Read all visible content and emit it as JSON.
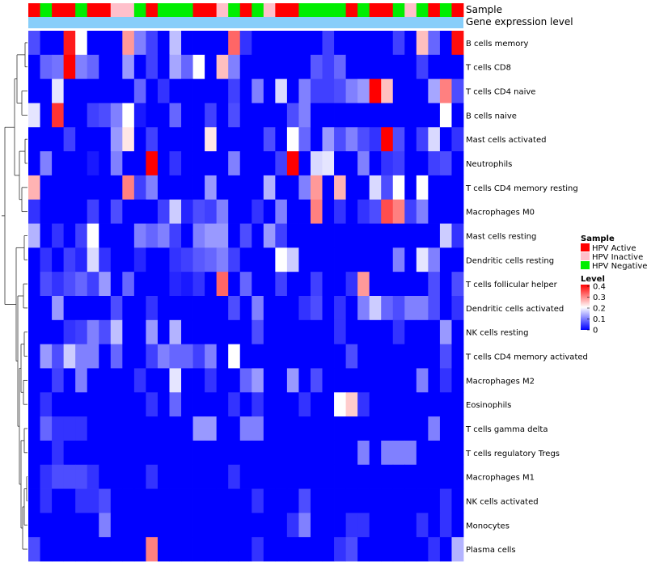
{
  "chart_data": {
    "type": "heatmap",
    "title": "",
    "annotation_tracks": [
      "Sample",
      "Gene expression level"
    ],
    "rows": [
      "B cells memory",
      "T cells CD8",
      "T cells CD4 naive",
      "B cells naive",
      "Mast cells activated",
      "Neutrophils",
      "T cells CD4 memory resting",
      "Macrophages M0",
      "Mast cells resting",
      "Dendritic cells resting",
      "T cells follicular helper",
      "Dendritic cells activated",
      "NK cells resting",
      "T cells CD4 memory activated",
      "Macrophages M2",
      "Eosinophils",
      "T cells gamma delta",
      "T cells regulatory  Tregs",
      "Macrophages M1",
      "NK cells activated",
      "Monocytes",
      "Plasma cells"
    ],
    "sample_groups": [
      "A",
      "N",
      "A",
      "A",
      "N",
      "A",
      "A",
      "I",
      "I",
      "N",
      "A",
      "N",
      "N",
      "N",
      "A",
      "A",
      "I",
      "N",
      "A",
      "N",
      "I",
      "A",
      "A",
      "N",
      "N",
      "N",
      "N",
      "A",
      "N",
      "A",
      "A",
      "N",
      "I",
      "N",
      "A",
      "N",
      "A"
    ],
    "sample_legend": {
      "title": "Sample",
      "entries": [
        {
          "key": "A",
          "label": "HPV Active",
          "color": "#ff0000"
        },
        {
          "key": "I",
          "label": "HPV Inactive",
          "color": "#ffc0cb"
        },
        {
          "key": "N",
          "label": "HPV Negative",
          "color": "#00ee00"
        }
      ]
    },
    "expression_bar_color": "#87cefa",
    "level_legend": {
      "title": "Level",
      "ticks": [
        "0.4",
        "0.3",
        "0.2",
        "0.1",
        "0"
      ],
      "range": [
        0,
        0.4
      ],
      "colors": [
        "#0000ff",
        "#ffffff",
        "#ff0000"
      ]
    },
    "values": [
      [
        0.06,
        0.0,
        0.0,
        0.38,
        0.2,
        0.0,
        0.0,
        0.0,
        0.28,
        0.1,
        0.05,
        0.0,
        0.15,
        0.0,
        0.0,
        0.0,
        0.0,
        0.32,
        0.04,
        0.0,
        0.0,
        0.0,
        0.0,
        0.0,
        0.0,
        0.05,
        0.0,
        0.0,
        0.0,
        0.0,
        0.0,
        0.05,
        0.0,
        0.25,
        0.08,
        0.0,
        0.39
      ],
      [
        0.0,
        0.08,
        0.09,
        0.4,
        0.1,
        0.08,
        0.0,
        0.0,
        0.12,
        0.0,
        0.05,
        0.0,
        0.13,
        0.08,
        0.2,
        0.0,
        0.25,
        0.1,
        0.0,
        0.0,
        0.0,
        0.0,
        0.0,
        0.0,
        0.07,
        0.05,
        0.08,
        0.0,
        0.0,
        0.0,
        0.0,
        0.0,
        0.0,
        0.05,
        0.0,
        0.0,
        0.0
      ],
      [
        0.0,
        0.0,
        0.18,
        0.0,
        0.0,
        0.0,
        0.0,
        0.0,
        0.0,
        0.08,
        0.0,
        0.04,
        0.0,
        0.0,
        0.0,
        0.0,
        0.0,
        0.05,
        0.0,
        0.1,
        0.0,
        0.17,
        0.0,
        0.1,
        0.05,
        0.05,
        0.06,
        0.1,
        0.12,
        0.4,
        0.25,
        0.0,
        0.0,
        0.0,
        0.13,
        0.3,
        0.06
      ],
      [
        0.18,
        0.0,
        0.36,
        0.0,
        0.0,
        0.05,
        0.06,
        0.1,
        0.2,
        0.02,
        0.0,
        0.0,
        0.08,
        0.0,
        0.0,
        0.05,
        0.0,
        0.06,
        0.0,
        0.0,
        0.0,
        0.0,
        0.06,
        0.1,
        0.0,
        0.0,
        0.0,
        0.0,
        0.0,
        0.0,
        0.0,
        0.0,
        0.0,
        0.0,
        0.0,
        0.2,
        0.0
      ],
      [
        0.0,
        0.0,
        0.0,
        0.05,
        0.0,
        0.0,
        0.0,
        0.12,
        0.22,
        0.0,
        0.05,
        0.0,
        0.0,
        0.0,
        0.0,
        0.22,
        0.0,
        0.0,
        0.0,
        0.0,
        0.06,
        0.0,
        0.2,
        0.08,
        0.0,
        0.12,
        0.06,
        0.1,
        0.06,
        0.04,
        0.4,
        0.06,
        0.0,
        0.05,
        0.17,
        0.0,
        0.04
      ],
      [
        0.0,
        0.1,
        0.0,
        0.0,
        0.0,
        0.02,
        0.0,
        0.1,
        0.0,
        0.0,
        0.4,
        0.0,
        0.04,
        0.0,
        0.0,
        0.0,
        0.0,
        0.1,
        0.0,
        0.0,
        0.0,
        0.05,
        0.4,
        0.0,
        0.17,
        0.18,
        0.0,
        0.0,
        0.1,
        0.0,
        0.04,
        0.05,
        0.0,
        0.0,
        0.05,
        0.06,
        0.0
      ],
      [
        0.26,
        0.0,
        0.0,
        0.0,
        0.0,
        0.0,
        0.0,
        0.0,
        0.3,
        0.05,
        0.1,
        0.0,
        0.0,
        0.0,
        0.0,
        0.12,
        0.0,
        0.0,
        0.0,
        0.0,
        0.14,
        0.0,
        0.0,
        0.1,
        0.28,
        0.0,
        0.26,
        0.0,
        0.0,
        0.17,
        0.06,
        0.2,
        0.0,
        0.2,
        0.0,
        0.0,
        0.0
      ],
      [
        0.04,
        0.0,
        0.0,
        0.0,
        0.0,
        0.05,
        0.0,
        0.06,
        0.0,
        0.0,
        0.0,
        0.05,
        0.16,
        0.03,
        0.06,
        0.05,
        0.1,
        0.0,
        0.0,
        0.04,
        0.0,
        0.1,
        0.0,
        0.0,
        0.3,
        0.0,
        0.04,
        0.0,
        0.04,
        0.06,
        0.34,
        0.3,
        0.05,
        0.1,
        0.0,
        0.0,
        0.0
      ],
      [
        0.14,
        0.0,
        0.04,
        0.0,
        0.05,
        0.2,
        0.0,
        0.0,
        0.0,
        0.1,
        0.08,
        0.1,
        0.05,
        0.0,
        0.1,
        0.12,
        0.12,
        0.0,
        0.06,
        0.0,
        0.12,
        0.05,
        0.0,
        0.0,
        0.0,
        0.0,
        0.0,
        0.0,
        0.0,
        0.0,
        0.0,
        0.0,
        0.0,
        0.0,
        0.0,
        0.16,
        0.04
      ],
      [
        0.0,
        0.04,
        0.0,
        0.05,
        0.03,
        0.17,
        0.04,
        0.0,
        0.0,
        0.03,
        0.0,
        0.0,
        0.04,
        0.05,
        0.07,
        0.08,
        0.1,
        0.05,
        0.0,
        0.0,
        0.0,
        0.2,
        0.16,
        0.0,
        0.0,
        0.0,
        0.0,
        0.0,
        0.0,
        0.0,
        0.0,
        0.1,
        0.0,
        0.18,
        0.1,
        0.0,
        0.0
      ],
      [
        0.0,
        0.06,
        0.04,
        0.06,
        0.08,
        0.05,
        0.12,
        0.0,
        0.08,
        0.0,
        0.0,
        0.0,
        0.03,
        0.02,
        0.04,
        0.0,
        0.32,
        0.0,
        0.08,
        0.0,
        0.0,
        0.05,
        0.0,
        0.0,
        0.05,
        0.0,
        0.0,
        0.04,
        0.28,
        0.0,
        0.0,
        0.0,
        0.0,
        0.0,
        0.06,
        0.0,
        0.06
      ],
      [
        0.0,
        0.0,
        0.12,
        0.0,
        0.0,
        0.0,
        0.0,
        0.06,
        0.0,
        0.0,
        0.04,
        0.0,
        0.0,
        0.0,
        0.0,
        0.0,
        0.0,
        0.06,
        0.0,
        0.1,
        0.0,
        0.0,
        0.0,
        0.04,
        0.06,
        0.0,
        0.04,
        0.0,
        0.1,
        0.16,
        0.08,
        0.06,
        0.1,
        0.1,
        0.06,
        0.0,
        0.04
      ],
      [
        0.0,
        0.0,
        0.0,
        0.04,
        0.05,
        0.1,
        0.06,
        0.15,
        0.0,
        0.0,
        0.12,
        0.0,
        0.14,
        0.0,
        0.0,
        0.0,
        0.0,
        0.0,
        0.0,
        0.06,
        0.0,
        0.0,
        0.0,
        0.0,
        0.0,
        0.0,
        0.04,
        0.0,
        0.0,
        0.0,
        0.0,
        0.04,
        0.0,
        0.0,
        0.0,
        0.12,
        0.0
      ],
      [
        0.0,
        0.12,
        0.06,
        0.16,
        0.1,
        0.1,
        0.0,
        0.08,
        0.0,
        0.0,
        0.05,
        0.1,
        0.08,
        0.08,
        0.05,
        0.1,
        0.0,
        0.2,
        0.0,
        0.0,
        0.0,
        0.0,
        0.0,
        0.0,
        0.0,
        0.0,
        0.0,
        0.06,
        0.0,
        0.0,
        0.0,
        0.0,
        0.0,
        0.0,
        0.0,
        0.06,
        0.0
      ],
      [
        0.0,
        0.0,
        0.05,
        0.0,
        0.1,
        0.0,
        0.0,
        0.0,
        0.0,
        0.04,
        0.0,
        0.0,
        0.18,
        0.0,
        0.0,
        0.04,
        0.0,
        0.0,
        0.08,
        0.12,
        0.0,
        0.0,
        0.12,
        0.0,
        0.06,
        0.0,
        0.0,
        0.0,
        0.0,
        0.0,
        0.0,
        0.0,
        0.0,
        0.1,
        0.0,
        0.04,
        0.0
      ],
      [
        0.0,
        0.04,
        0.0,
        0.0,
        0.0,
        0.0,
        0.0,
        0.0,
        0.0,
        0.0,
        0.04,
        0.0,
        0.08,
        0.0,
        0.0,
        0.0,
        0.0,
        0.04,
        0.0,
        0.04,
        0.0,
        0.0,
        0.0,
        0.04,
        0.0,
        0.0,
        0.2,
        0.24,
        0.04,
        0.0,
        0.0,
        0.0,
        0.0,
        0.0,
        0.0,
        0.0,
        0.0
      ],
      [
        0.0,
        0.08,
        0.04,
        0.04,
        0.04,
        0.0,
        0.0,
        0.0,
        0.0,
        0.0,
        0.0,
        0.0,
        0.0,
        0.0,
        0.12,
        0.12,
        0.0,
        0.0,
        0.1,
        0.1,
        0.0,
        0.0,
        0.0,
        0.0,
        0.0,
        0.0,
        0.0,
        0.0,
        0.0,
        0.0,
        0.0,
        0.0,
        0.0,
        0.0,
        0.1,
        0.0,
        0.0
      ],
      [
        0.0,
        0.0,
        0.04,
        0.0,
        0.0,
        0.0,
        0.0,
        0.0,
        0.0,
        0.0,
        0.0,
        0.0,
        0.0,
        0.0,
        0.0,
        0.0,
        0.0,
        0.0,
        0.0,
        0.0,
        0.0,
        0.0,
        0.0,
        0.0,
        0.0,
        0.0,
        0.0,
        0.0,
        0.1,
        0.0,
        0.1,
        0.1,
        0.1,
        0.0,
        0.0,
        0.0,
        0.0
      ],
      [
        0.0,
        0.04,
        0.06,
        0.06,
        0.06,
        0.04,
        0.0,
        0.0,
        0.0,
        0.0,
        0.04,
        0.0,
        0.0,
        0.0,
        0.0,
        0.0,
        0.0,
        0.04,
        0.0,
        0.0,
        0.0,
        0.0,
        0.0,
        0.0,
        0.0,
        0.0,
        0.0,
        0.0,
        0.0,
        0.0,
        0.0,
        0.0,
        0.0,
        0.0,
        0.0,
        0.0,
        0.0
      ],
      [
        0.0,
        0.04,
        0.0,
        0.0,
        0.04,
        0.04,
        0.06,
        0.0,
        0.0,
        0.0,
        0.0,
        0.0,
        0.0,
        0.0,
        0.0,
        0.0,
        0.0,
        0.0,
        0.0,
        0.04,
        0.0,
        0.0,
        0.0,
        0.06,
        0.0,
        0.0,
        0.0,
        0.0,
        0.0,
        0.0,
        0.0,
        0.0,
        0.0,
        0.0,
        0.0,
        0.04,
        0.0
      ],
      [
        0.0,
        0.0,
        0.0,
        0.0,
        0.0,
        0.0,
        0.1,
        0.0,
        0.0,
        0.0,
        0.0,
        0.0,
        0.0,
        0.0,
        0.0,
        0.0,
        0.0,
        0.0,
        0.0,
        0.0,
        0.0,
        0.0,
        0.04,
        0.1,
        0.0,
        0.0,
        0.0,
        0.04,
        0.04,
        0.0,
        0.0,
        0.0,
        0.0,
        0.04,
        0.0,
        0.04,
        0.0
      ],
      [
        0.06,
        0.0,
        0.0,
        0.0,
        0.0,
        0.0,
        0.0,
        0.0,
        0.0,
        0.0,
        0.3,
        0.0,
        0.0,
        0.0,
        0.0,
        0.0,
        0.0,
        0.0,
        0.0,
        0.04,
        0.0,
        0.0,
        0.0,
        0.0,
        0.0,
        0.0,
        0.04,
        0.06,
        0.0,
        0.0,
        0.0,
        0.0,
        0.0,
        0.0,
        0.04,
        0.0,
        0.14
      ]
    ]
  }
}
